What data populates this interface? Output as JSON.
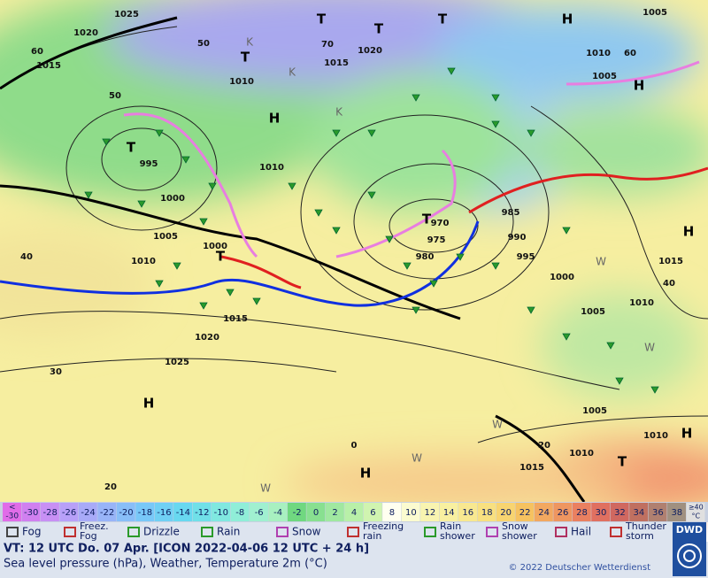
{
  "map": {
    "isobar_labels": [
      1025,
      1020,
      1015,
      1010,
      1020,
      1015,
      1010,
      995,
      1000,
      1005,
      1010,
      1000,
      1015,
      1020,
      1025,
      970,
      975,
      980,
      985,
      990,
      995,
      1000,
      1005,
      1010,
      1015,
      1005,
      1010,
      1010,
      1015,
      1010,
      1005,
      1005
    ],
    "temperature_labels": [
      60,
      50,
      40,
      30,
      20,
      0,
      20,
      40,
      60,
      70,
      50
    ],
    "pressure_centers": [
      "T",
      "T",
      "H",
      "H",
      "T",
      "T",
      "H",
      "T",
      "T",
      "H",
      "T",
      "H",
      "H",
      "T",
      "H"
    ],
    "other_letters": [
      "K",
      "K",
      "W",
      "K",
      "W",
      "W",
      "W",
      "W"
    ]
  },
  "colorbar": {
    "first": {
      "top": "<",
      "bottom": "-30"
    },
    "values": [
      -30,
      -28,
      -26,
      -24,
      -22,
      -20,
      -18,
      -16,
      -14,
      -12,
      -10,
      -8,
      -6,
      -4,
      -2,
      0,
      2,
      4,
      6,
      8,
      10,
      12,
      14,
      16,
      18,
      20,
      22,
      24,
      26,
      28,
      30,
      32,
      34,
      36,
      38
    ],
    "last": {
      "top": "≥40",
      "bottom": "°C"
    }
  },
  "legend": [
    {
      "lines": [
        "Fog"
      ]
    },
    {
      "lines": [
        "Freez.",
        "Fog"
      ]
    },
    {
      "lines": [
        "Drizzle"
      ]
    },
    {
      "lines": [
        "Rain"
      ]
    },
    {
      "lines": [
        "Snow"
      ]
    },
    {
      "lines": [
        "Freezing",
        "rain"
      ]
    },
    {
      "lines": [
        "Rain",
        "shower"
      ]
    },
    {
      "lines": [
        "Snow",
        "shower"
      ]
    },
    {
      "lines": [
        "Hail"
      ]
    },
    {
      "lines": [
        "Thunder",
        "storm"
      ]
    }
  ],
  "footer": {
    "valid_time": "VT: 12 UTC Do.  07 Apr. [ICON 2022-04-06  12 UTC + 24 h]",
    "description": "Sea level pressure (hPa), Weather, Temperature 2m (°C)",
    "copyright": "© 2022 Deutscher Wetterdienst",
    "logo": "DWD"
  }
}
